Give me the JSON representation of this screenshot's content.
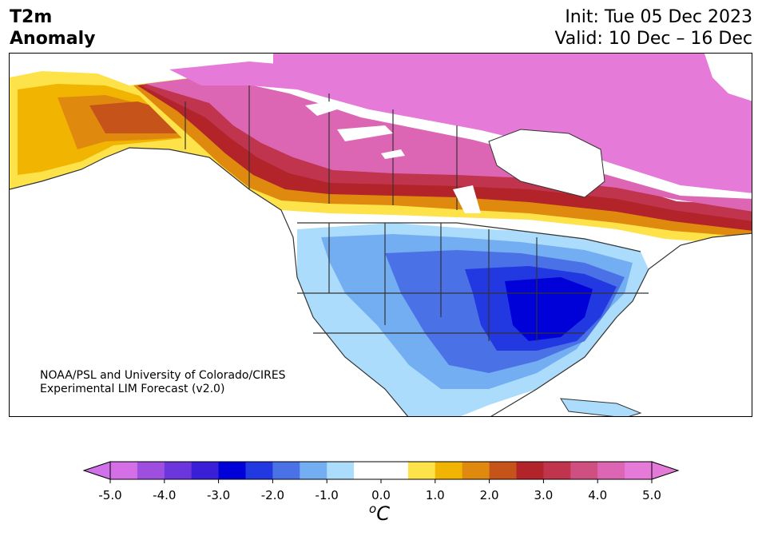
{
  "header": {
    "title_line1": "T2m",
    "title_line2": "Anomaly",
    "init": "Init: Tue 05 Dec 2023",
    "valid": "Valid: 10 Dec – 16 Dec"
  },
  "map": {
    "credit_line1": "NOAA/PSL and University of Colorado/CIRES",
    "credit_line2": "Experimental LIM Forecast (v2.0)"
  },
  "colorbar": {
    "unit_main": "C",
    "unit_sup": "o",
    "min": -5.0,
    "max": 5.0,
    "ticks": [
      "-5.0",
      "-4.0",
      "-3.0",
      "-2.0",
      "-1.0",
      "0.0",
      "1.0",
      "2.0",
      "3.0",
      "4.0",
      "5.0"
    ],
    "colors": [
      "#d46fe6",
      "#9f4fe0",
      "#6b36dc",
      "#3a1fd6",
      "#0000d8",
      "#2238e0",
      "#4a72e6",
      "#74aef2",
      "#abdcfb",
      "#ffffff",
      "#ffffff",
      "#fde24a",
      "#f1b400",
      "#e0890f",
      "#c6531a",
      "#b2232a",
      "#c0344e",
      "#cf4f80",
      "#dc66b4",
      "#e67ad8"
    ],
    "low_extend_color": "#d070ea",
    "high_extend_color": "#e47ad8"
  },
  "chart_data": {
    "type": "heatmap",
    "variable": "T2m Anomaly",
    "units": "°C",
    "color_range": [
      -5.0,
      5.0
    ],
    "regions": [
      {
        "region": "Northern Canada",
        "anomaly": 5.0
      },
      {
        "region": "Alaska",
        "anomaly": 1.5
      },
      {
        "region": "Southern Canada",
        "anomaly": 3.0
      },
      {
        "region": "Northern US border",
        "anomaly": 1.0
      },
      {
        "region": "Western US",
        "anomaly": -1.0
      },
      {
        "region": "Central US",
        "anomaly": -2.0
      },
      {
        "region": "Southeast US",
        "anomaly": -3.0
      },
      {
        "region": "Mexico",
        "anomaly": -1.0
      }
    ]
  }
}
